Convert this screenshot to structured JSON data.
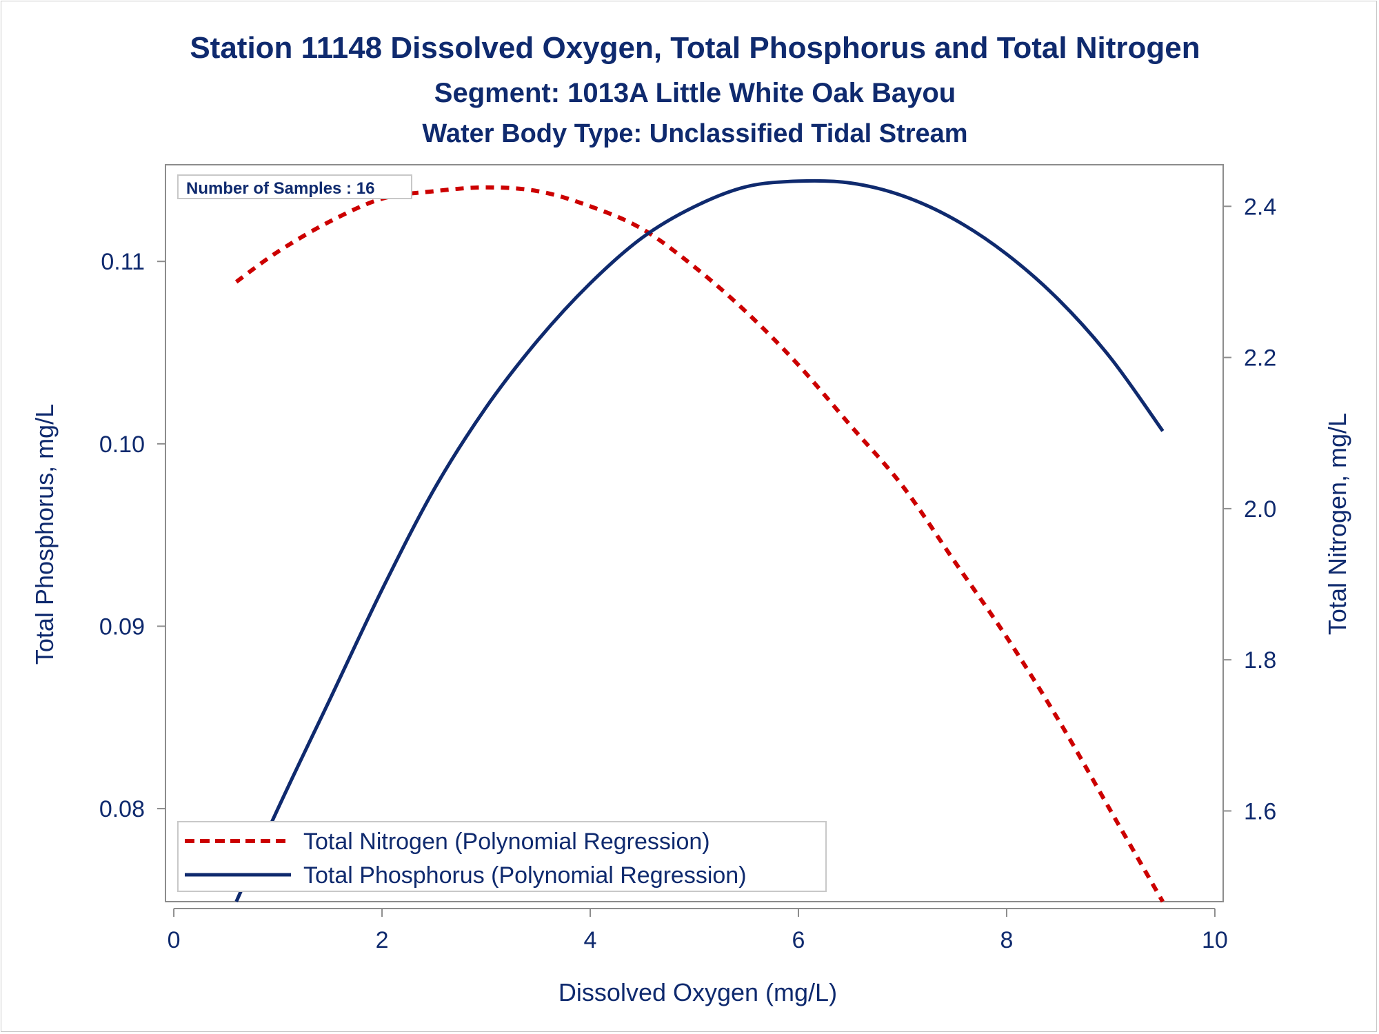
{
  "chart_data": {
    "type": "line",
    "title": "Station 11148  Dissolved Oxygen, Total Phosphorus and Total Nitrogen",
    "subtitle": "Segment: 1013A  Little White Oak Bayou",
    "subtitle2": "Water Body Type: Unclassified Tidal Stream",
    "xlabel": "Dissolved Oxygen (mg/L)",
    "ylabel": "Total Phosphorus, mg/L",
    "y2label": "Total Nitrogen, mg/L",
    "xlim": [
      -0.08,
      10.08
    ],
    "ylim": [
      0.0749,
      0.1153
    ],
    "y2lim": [
      1.48,
      2.455
    ],
    "xticks": [
      0,
      2,
      4,
      6,
      8,
      10
    ],
    "xtick_labels": [
      "0",
      "2",
      "4",
      "6",
      "8",
      "10"
    ],
    "yticks": [
      0.08,
      0.09,
      0.1,
      0.11
    ],
    "ytick_labels": [
      "0.08",
      "0.09",
      "0.10",
      "0.11"
    ],
    "y2ticks": [
      1.6,
      1.8,
      2.0,
      2.2,
      2.4
    ],
    "y2tick_labels": [
      "1.6",
      "1.8",
      "2.0",
      "2.2",
      "2.4"
    ],
    "grid": false,
    "annotation": "Number of Samples : 16",
    "legend_position": "bottom-left",
    "series": [
      {
        "name": "Total Nitrogen (Polynomial Regression)",
        "axis": "right",
        "style": "dashed",
        "color": "#cc0000",
        "x": [
          0.6,
          1.0,
          1.5,
          2.0,
          2.5,
          3.0,
          3.5,
          4.0,
          4.5,
          5.0,
          5.5,
          6.0,
          6.5,
          7.0,
          7.5,
          8.0,
          8.5,
          9.0,
          9.5
        ],
        "values": [
          2.3,
          2.34,
          2.38,
          2.41,
          2.42,
          2.425,
          2.42,
          2.4,
          2.37,
          2.32,
          2.26,
          2.19,
          2.11,
          2.03,
          1.93,
          1.83,
          1.72,
          1.6,
          1.48
        ]
      },
      {
        "name": "Total Phosphorus (Polynomial Regression)",
        "axis": "left",
        "style": "solid",
        "color": "#0f2a6e",
        "x": [
          0.6,
          1.0,
          1.5,
          2.0,
          2.5,
          3.0,
          3.5,
          4.0,
          4.5,
          5.0,
          5.5,
          6.0,
          6.5,
          7.0,
          7.5,
          8.0,
          8.5,
          9.0,
          9.5
        ],
        "values": [
          0.0749,
          0.08,
          0.086,
          0.092,
          0.0975,
          0.102,
          0.1057,
          0.1088,
          0.1113,
          0.113,
          0.1141,
          0.1144,
          0.1143,
          0.1136,
          0.1123,
          0.1104,
          0.1079,
          0.1047,
          0.1007
        ]
      }
    ]
  }
}
